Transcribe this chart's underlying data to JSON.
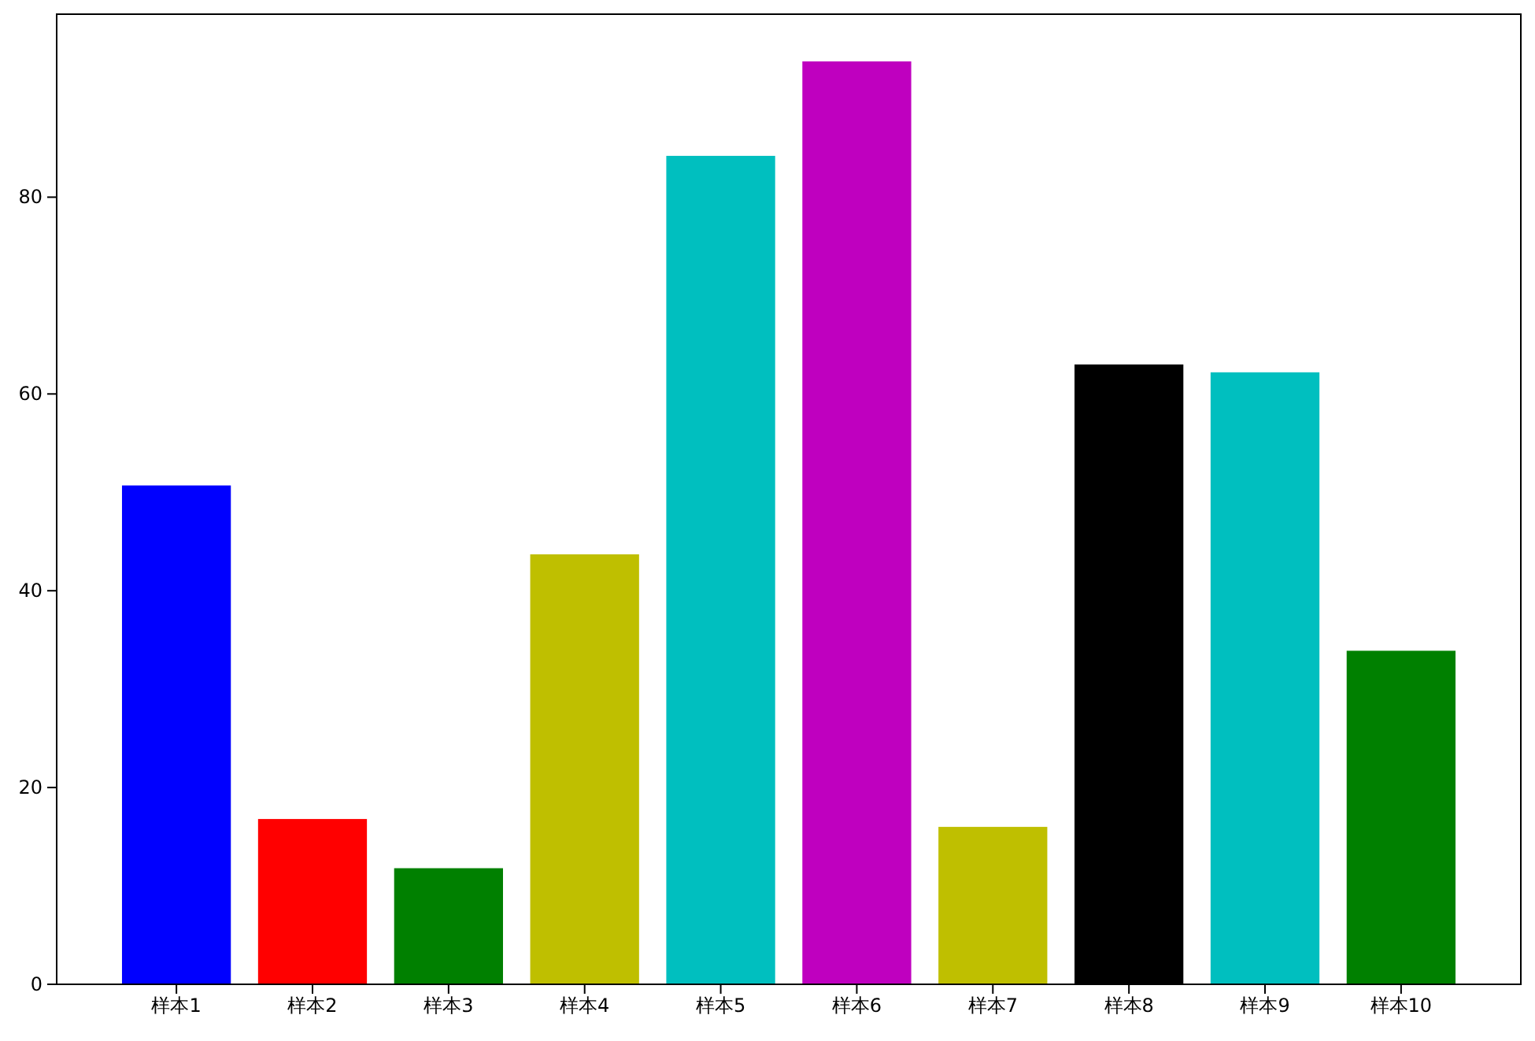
{
  "chart_data": {
    "type": "bar",
    "categories": [
      "样本1",
      "样本2",
      "样本3",
      "样本4",
      "样本5",
      "样本6",
      "样本7",
      "样本8",
      "样本9",
      "样本10"
    ],
    "values": [
      50.7,
      16.8,
      11.8,
      43.7,
      84.2,
      93.8,
      16.0,
      63.0,
      62.2,
      33.9
    ],
    "colors": [
      "#0000ff",
      "#ff0000",
      "#008000",
      "#bfbf00",
      "#00bfbf",
      "#bf00bf",
      "#bfbf00",
      "#000000",
      "#00bfbf",
      "#008000"
    ],
    "ylim": [
      0,
      98.6
    ],
    "yticks": [
      0,
      20,
      40,
      60,
      80
    ],
    "grid": false
  }
}
